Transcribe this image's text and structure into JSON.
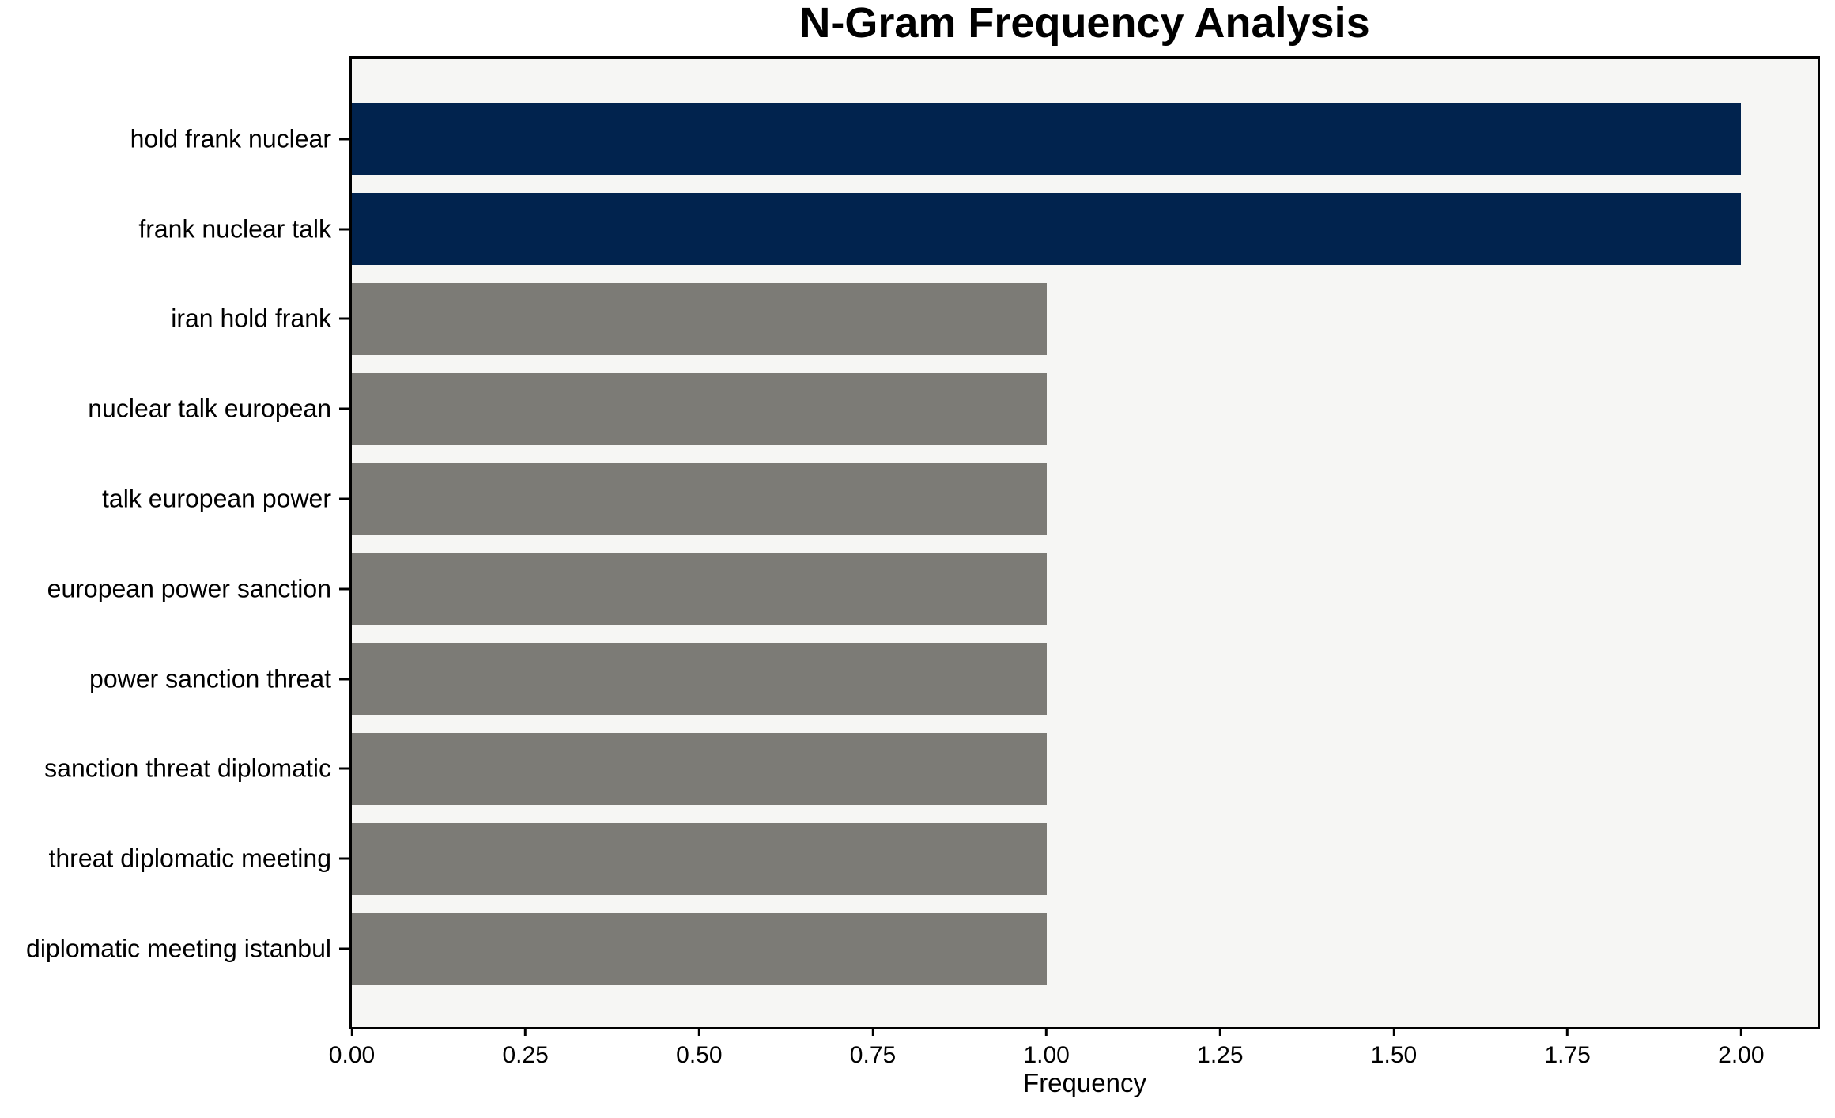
{
  "title": "N-Gram Frequency Analysis",
  "chart_data": {
    "type": "bar",
    "orientation": "horizontal",
    "title": "N-Gram Frequency Analysis",
    "xlabel": "Frequency",
    "ylabel": "",
    "categories": [
      "hold frank nuclear",
      "frank nuclear talk",
      "iran hold frank",
      "nuclear talk european",
      "talk european power",
      "european power sanction",
      "power sanction threat",
      "sanction threat diplomatic",
      "threat diplomatic meeting",
      "diplomatic meeting istanbul"
    ],
    "values": [
      2,
      2,
      1,
      1,
      1,
      1,
      1,
      1,
      1,
      1
    ],
    "bar_color_keys": [
      "highlight",
      "highlight",
      "default",
      "default",
      "default",
      "default",
      "default",
      "default",
      "default",
      "default"
    ],
    "xlim": [
      0,
      2.11
    ],
    "xticks": [
      0,
      0.25,
      0.5,
      0.75,
      1.0,
      1.25,
      1.5,
      1.75,
      2.0
    ],
    "xtick_labels": [
      "0.00",
      "0.25",
      "0.50",
      "0.75",
      "1.00",
      "1.25",
      "1.50",
      "1.75",
      "2.00"
    ],
    "grid": false,
    "legend": null,
    "colors": {
      "highlight_bar": "#01234e",
      "default_bar": "#7c7b76",
      "plot_background": "#f6f6f4",
      "figure_background": "#ffffff",
      "spine": "#000000",
      "text": "#000000"
    }
  }
}
